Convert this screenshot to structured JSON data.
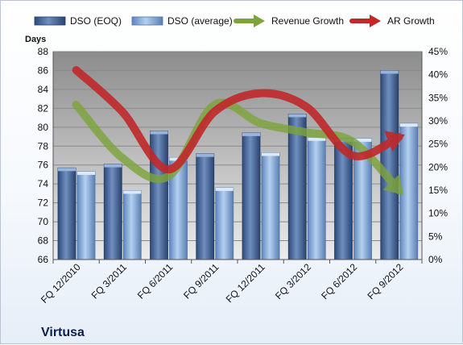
{
  "company": "Virtusa",
  "chart_data": {
    "type": "bar",
    "title": "",
    "categories": [
      "FQ 12/2010",
      "FQ 3/2011",
      "FQ 6/2011",
      "FQ 9/2011",
      "FQ 12/2011",
      "FQ 3/2012",
      "FQ 6/2012",
      "FQ 9/2012"
    ],
    "ylabel": "Days",
    "ylim": [
      66,
      88
    ],
    "yticks": [
      66,
      68,
      70,
      72,
      74,
      76,
      78,
      80,
      82,
      84,
      86,
      88
    ],
    "y2lim": [
      0,
      0.45
    ],
    "y2ticks": [
      "0%",
      "5%",
      "10%",
      "15%",
      "20%",
      "25%",
      "30%",
      "35%",
      "40%",
      "45%"
    ],
    "grid": true,
    "legend_position": "top",
    "series": [
      {
        "name": "DSO (EOQ)",
        "kind": "bar",
        "axis": "left",
        "color": "#4a6a9c",
        "values": [
          75.7,
          76.1,
          79.6,
          77.2,
          79.4,
          81.4,
          78.8,
          86.0
        ]
      },
      {
        "name": "DSO (average)",
        "kind": "bar",
        "axis": "left",
        "color": "#8fb2dc",
        "values": [
          75.3,
          73.3,
          76.8,
          73.6,
          77.3,
          78.9,
          78.8,
          80.4
        ]
      },
      {
        "name": "Revenue Growth",
        "kind": "line",
        "axis": "right",
        "color": "#7da33c",
        "values": [
          0.335,
          0.22,
          0.18,
          0.335,
          0.295,
          0.275,
          0.255,
          0.15
        ]
      },
      {
        "name": "AR Growth",
        "kind": "line",
        "axis": "right",
        "color": "#c0282a",
        "values": [
          0.41,
          0.32,
          0.195,
          0.32,
          0.36,
          0.33,
          0.225,
          0.265
        ]
      }
    ]
  }
}
